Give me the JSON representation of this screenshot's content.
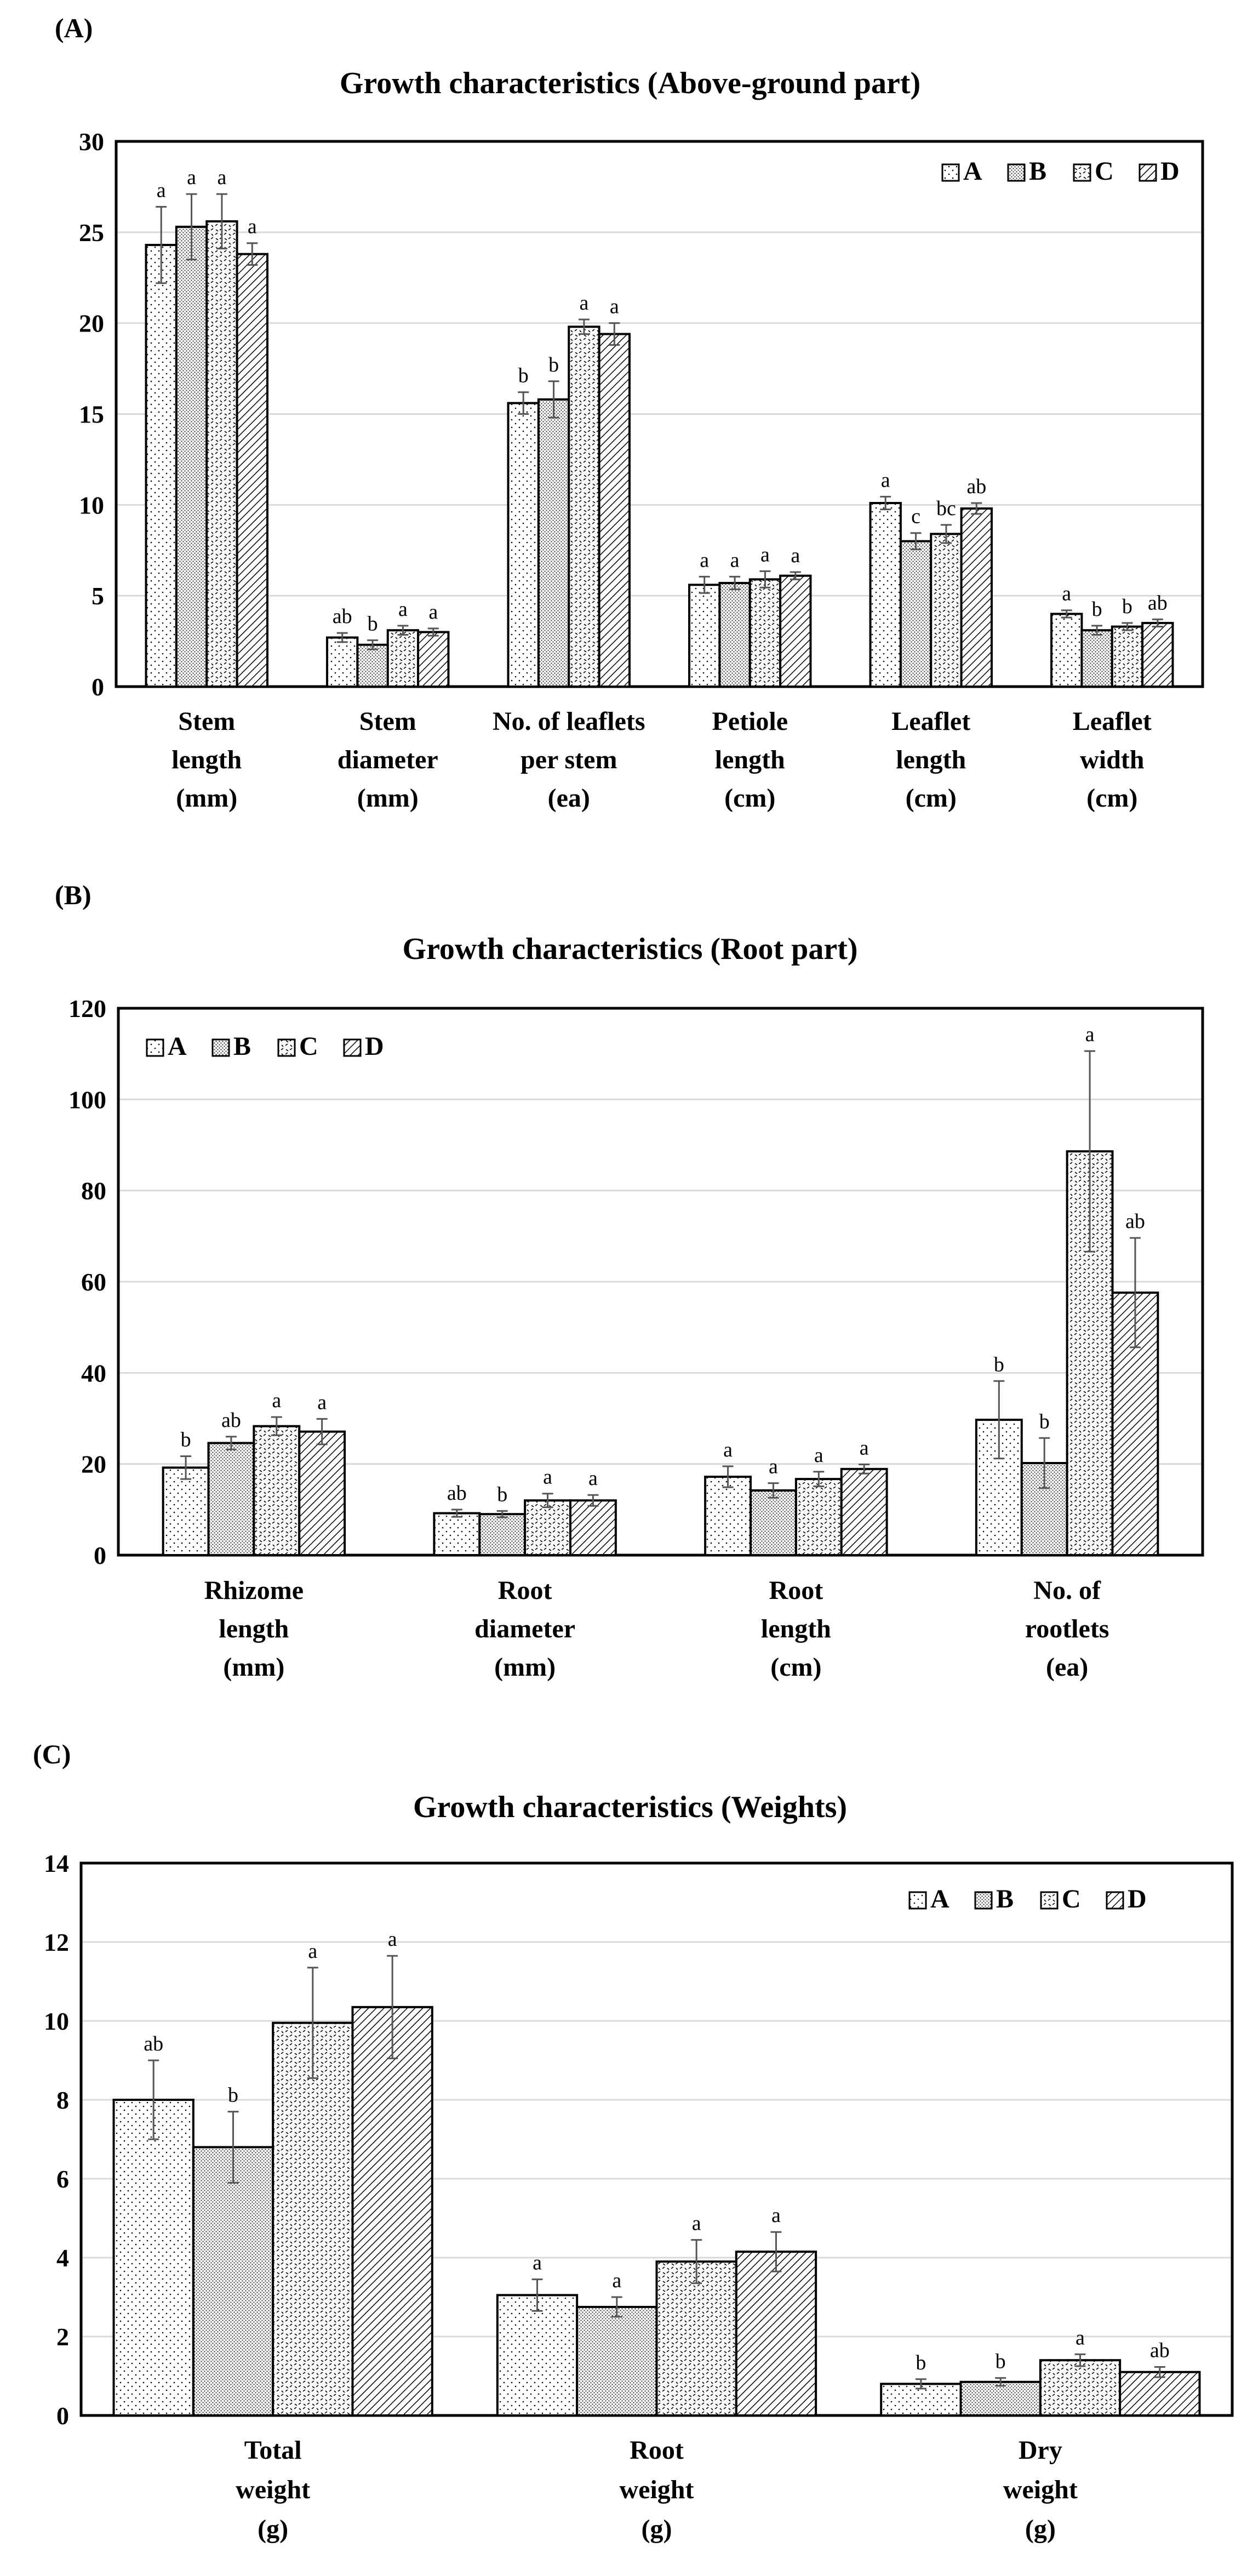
{
  "legend_series": [
    "A",
    "B",
    "C",
    "D"
  ],
  "chart_data": [
    {
      "panel_label": "(A)",
      "type": "bar",
      "title": "Growth characteristics (Above-ground part)",
      "xlabel": "",
      "ylabel": "",
      "ylim": [
        0,
        30
      ],
      "yticks": [
        0,
        5,
        10,
        15,
        20,
        25,
        30
      ],
      "grid": true,
      "legend_position": "top-right",
      "categories": [
        [
          "Stem",
          "length",
          "(mm)"
        ],
        [
          "Stem",
          "diameter",
          "(mm)"
        ],
        [
          "No. of leaflets",
          "per stem",
          "(ea)"
        ],
        [
          "Petiole",
          "length",
          "(cm)"
        ],
        [
          "Leaflet",
          "length",
          "(cm)"
        ],
        [
          "Leaflet",
          "width",
          "(cm)"
        ]
      ],
      "series": [
        {
          "name": "A",
          "values": [
            24.3,
            2.7,
            15.6,
            5.6,
            10.1,
            4.0
          ],
          "errors": [
            2.1,
            0.25,
            0.6,
            0.45,
            0.35,
            0.2
          ],
          "letters": [
            "a",
            "ab",
            "b",
            "a",
            "a",
            "a"
          ]
        },
        {
          "name": "B",
          "values": [
            25.3,
            2.3,
            15.8,
            5.7,
            8.0,
            3.1
          ],
          "errors": [
            1.8,
            0.25,
            1.0,
            0.35,
            0.45,
            0.25
          ],
          "letters": [
            "a",
            "b",
            "b",
            "a",
            "c",
            "b"
          ]
        },
        {
          "name": "C",
          "values": [
            25.6,
            3.1,
            19.8,
            5.9,
            8.4,
            3.3
          ],
          "errors": [
            1.5,
            0.25,
            0.4,
            0.45,
            0.5,
            0.2
          ],
          "letters": [
            "a",
            "a",
            "a",
            "a",
            "bc",
            "b"
          ]
        },
        {
          "name": "D",
          "values": [
            23.8,
            3.0,
            19.4,
            6.1,
            9.8,
            3.5
          ],
          "errors": [
            0.6,
            0.2,
            0.6,
            0.2,
            0.3,
            0.2
          ],
          "letters": [
            "a",
            "a",
            "a",
            "a",
            "ab",
            "ab"
          ]
        }
      ]
    },
    {
      "panel_label": "(B)",
      "type": "bar",
      "title": "Growth characteristics (Root part)",
      "xlabel": "",
      "ylabel": "",
      "ylim": [
        0,
        120
      ],
      "yticks": [
        0,
        20,
        40,
        60,
        80,
        100,
        120
      ],
      "grid": true,
      "legend_position": "top-left",
      "categories": [
        [
          "Rhizome",
          "length",
          "(mm)"
        ],
        [
          "Root",
          "diameter",
          "(mm)"
        ],
        [
          "Root",
          "length",
          "(cm)"
        ],
        [
          "No. of",
          "rootlets",
          "(ea)"
        ]
      ],
      "series": [
        {
          "name": "A",
          "values": [
            19.2,
            9.2,
            17.2,
            29.7
          ],
          "errors": [
            2.5,
            0.8,
            2.3,
            8.5
          ],
          "letters": [
            "b",
            "ab",
            "a",
            "b"
          ]
        },
        {
          "name": "B",
          "values": [
            24.6,
            9.0,
            14.2,
            20.2
          ],
          "errors": [
            1.4,
            0.7,
            1.6,
            5.5
          ],
          "letters": [
            "ab",
            "b",
            "a",
            "b"
          ]
        },
        {
          "name": "C",
          "values": [
            28.3,
            12.0,
            16.7,
            88.6
          ],
          "errors": [
            2.0,
            1.5,
            1.6,
            22.0
          ],
          "letters": [
            "a",
            "a",
            "a",
            "a"
          ]
        },
        {
          "name": "D",
          "values": [
            27.1,
            12.0,
            18.9,
            57.6
          ],
          "errors": [
            2.8,
            1.2,
            1.0,
            12.0
          ],
          "letters": [
            "a",
            "a",
            "a",
            "ab"
          ]
        }
      ]
    },
    {
      "panel_label": "(C)",
      "type": "bar",
      "title": "Growth characteristics (Weights)",
      "xlabel": "",
      "ylabel": "",
      "ylim": [
        0,
        14
      ],
      "yticks": [
        0,
        2,
        4,
        6,
        8,
        10,
        12,
        14
      ],
      "grid": true,
      "legend_position": "top-right",
      "categories": [
        [
          "Total",
          "weight",
          "(g)"
        ],
        [
          "Root",
          "weight",
          "(g)"
        ],
        [
          "Dry",
          "weight",
          "(g)"
        ]
      ],
      "series": [
        {
          "name": "A",
          "values": [
            8.0,
            3.05,
            0.8
          ],
          "errors": [
            1.0,
            0.4,
            0.12
          ],
          "letters": [
            "ab",
            "a",
            "b"
          ]
        },
        {
          "name": "B",
          "values": [
            6.8,
            2.75,
            0.85
          ],
          "errors": [
            0.9,
            0.25,
            0.1
          ],
          "letters": [
            "b",
            "a",
            "b"
          ]
        },
        {
          "name": "C",
          "values": [
            9.95,
            3.9,
            1.4
          ],
          "errors": [
            1.4,
            0.55,
            0.15
          ],
          "letters": [
            "a",
            "a",
            "a"
          ]
        },
        {
          "name": "D",
          "values": [
            10.35,
            4.15,
            1.1
          ],
          "errors": [
            1.3,
            0.5,
            0.13
          ],
          "letters": [
            "a",
            "a",
            "ab"
          ]
        }
      ]
    }
  ]
}
